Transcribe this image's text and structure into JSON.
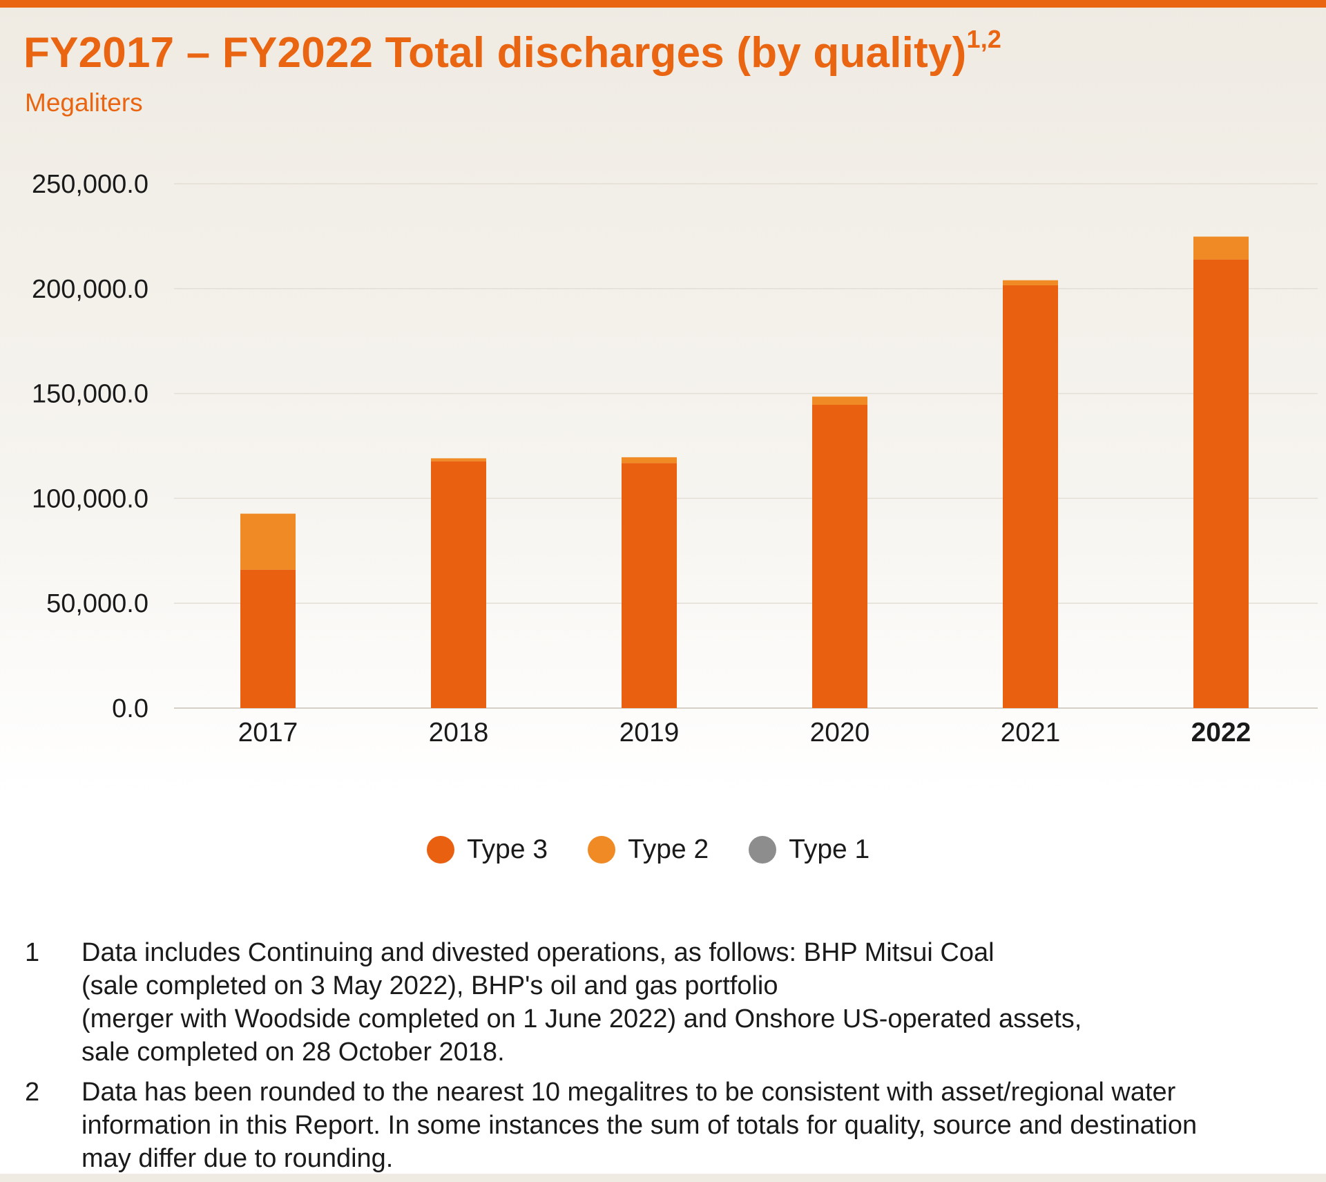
{
  "header": {
    "title": "FY2017 – FY2022 Total discharges (by quality)",
    "title_superscript": "1,2",
    "subtitle": "Megaliters"
  },
  "colors": {
    "brand": "#ea6511",
    "type3": "#ea6011",
    "type2": "#f08a24",
    "type1": "#8d8d8d",
    "gridline": "#e2ded5",
    "axis": "#d4d0c8"
  },
  "chart_data": {
    "type": "bar",
    "stacked": true,
    "title": "FY2017 – FY2022 Total discharges (by quality)",
    "ylabel": "Megaliters",
    "xlabel": "",
    "categories": [
      "2017",
      "2018",
      "2019",
      "2020",
      "2021",
      "2022"
    ],
    "highlight_category": "2022",
    "series": [
      {
        "name": "Type 3",
        "values": [
          66000,
          117700,
          116800,
          144600,
          201600,
          213900
        ]
      },
      {
        "name": "Type 2",
        "values": [
          26700,
          1400,
          2800,
          3900,
          2400,
          10900
        ]
      },
      {
        "name": "Type 1",
        "values": [
          0,
          0,
          0,
          0,
          0,
          0
        ]
      }
    ],
    "ylim": [
      0,
      250000
    ],
    "yticks": [
      0,
      50000,
      100000,
      150000,
      200000,
      250000
    ],
    "ytick_labels": [
      "0.0",
      "50,000.0",
      "100,000.0",
      "150,000.0",
      "200,000.0",
      "250,000.0"
    ],
    "grid": true,
    "legend_position": "bottom-center"
  },
  "legend": [
    {
      "label": "Type 3",
      "color": "#ea6011"
    },
    {
      "label": "Type 2",
      "color": "#f08a24"
    },
    {
      "label": "Type 1",
      "color": "#8d8d8d"
    }
  ],
  "footnotes": [
    {
      "number": "1",
      "lines": [
        "Data includes Continuing and divested operations, as follows: BHP Mitsui Coal",
        "(sale completed on 3 May 2022), BHP's oil and gas portfolio",
        "(merger with Woodside completed on 1 June 2022) and Onshore US-operated assets,",
        "sale completed on 28 October 2018."
      ]
    },
    {
      "number": "2",
      "lines": [
        "Data has been rounded to the nearest 10 megalitres to be consistent with asset/regional water",
        "information in this Report. In some instances the sum of totals for quality, source and destination",
        "may differ due to rounding."
      ]
    }
  ]
}
